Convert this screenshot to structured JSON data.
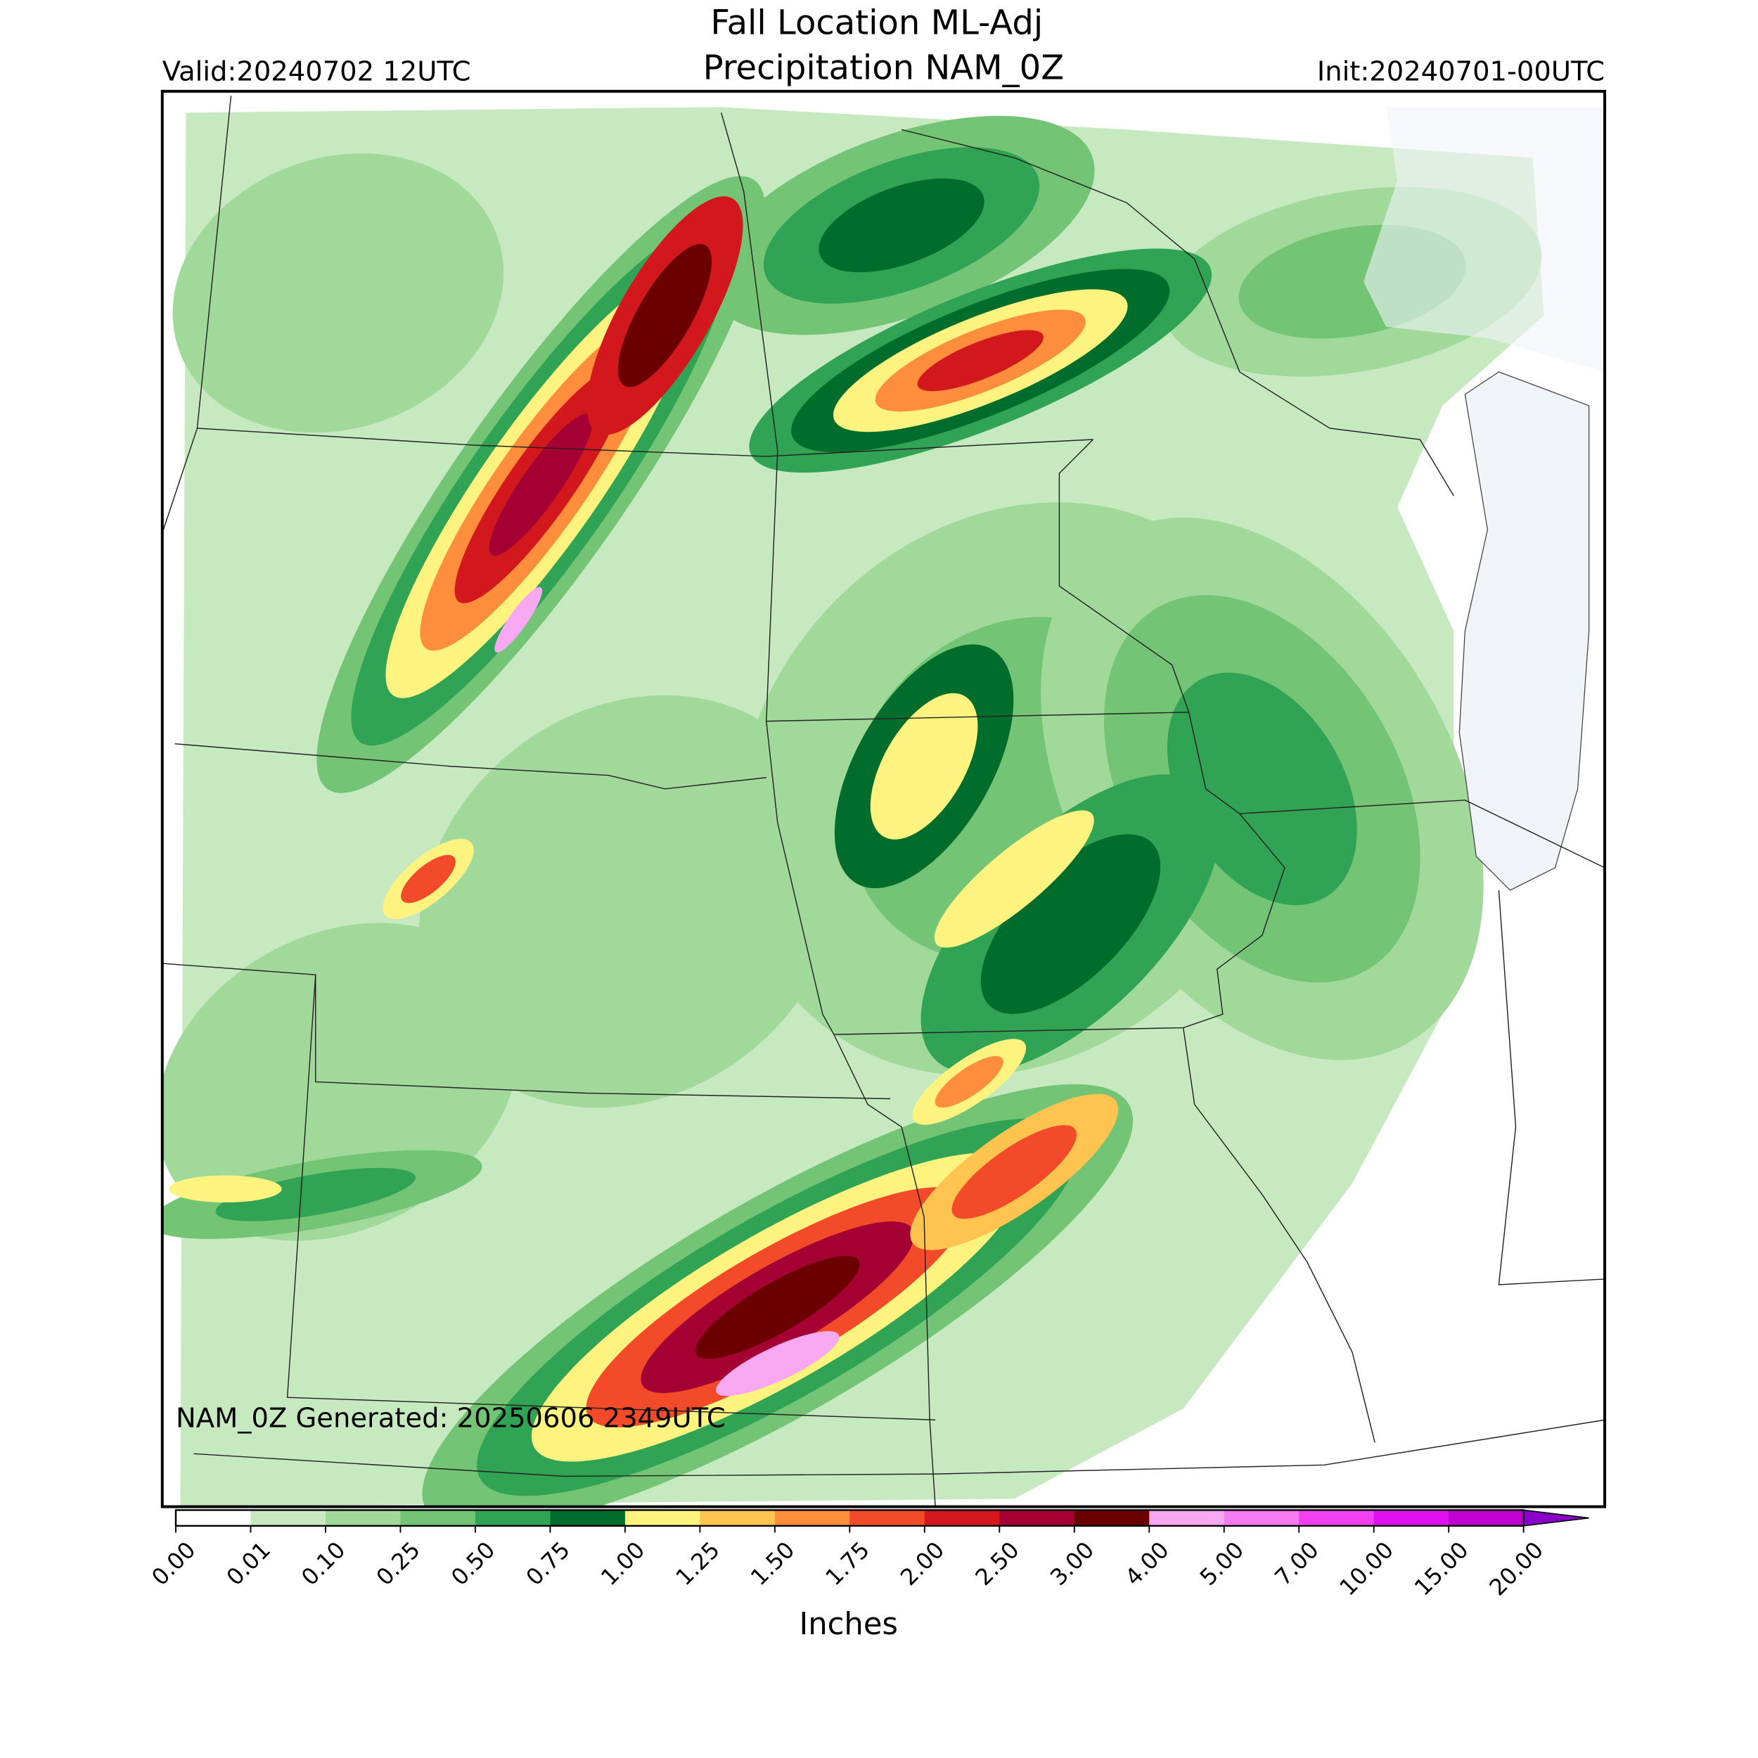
{
  "header": {
    "title": "Fall Location ML-Adj",
    "subtitle": "Precipitation NAM_0Z",
    "valid": "Valid:20240702 12UTC",
    "init": "Init:20240701-00UTC"
  },
  "map": {
    "note": "NAM_0Z Generated: 20250606 2349UTC"
  },
  "colorbar": {
    "label": "Inches",
    "ticks": [
      {
        "value": 0,
        "label": "0.00"
      },
      {
        "value": 0.01,
        "label": "0.01"
      },
      {
        "value": 0.1,
        "label": "0.10"
      },
      {
        "value": 0.25,
        "label": "0.25"
      },
      {
        "value": 0.5,
        "label": "0.50"
      },
      {
        "value": 0.75,
        "label": "0.75"
      },
      {
        "value": 1,
        "label": "1.00"
      },
      {
        "value": 1.25,
        "label": "1.25"
      },
      {
        "value": 1.5,
        "label": "1.50"
      },
      {
        "value": 1.75,
        "label": "1.75"
      },
      {
        "value": 2,
        "label": "2.00"
      },
      {
        "value": 2.5,
        "label": "2.50"
      },
      {
        "value": 3,
        "label": "3.00"
      },
      {
        "value": 4,
        "label": "4.00"
      },
      {
        "value": 5,
        "label": "5.00"
      },
      {
        "value": 7,
        "label": "7.00"
      },
      {
        "value": 10,
        "label": "10.00"
      },
      {
        "value": 15,
        "label": "15.00"
      },
      {
        "value": 20,
        "label": "20.00"
      }
    ],
    "colors": [
      "#ffffff",
      "#c7e9c0",
      "#a1d99b",
      "#74c476",
      "#31a354",
      "#006d2c",
      "#fff380",
      "#ffc44f",
      "#fe8d3c",
      "#f34a2a",
      "#d3181d",
      "#a50034",
      "#6b0000",
      "#f7a8f0",
      "#f57cf0",
      "#f040f0",
      "#e010f0",
      "#c000d0"
    ],
    "extend_color": "#8a00c8"
  }
}
